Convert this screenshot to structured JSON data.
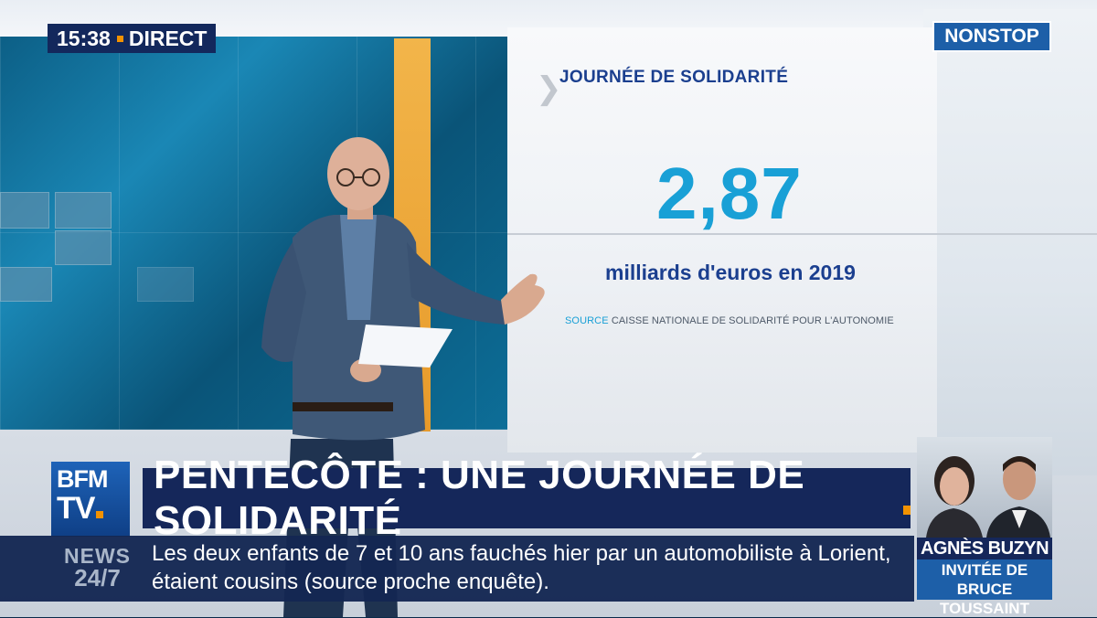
{
  "clock": {
    "time": "15:38",
    "live_label": "DIRECT"
  },
  "channel_badge": {
    "part1": "NON",
    "part2": "STOP"
  },
  "graphic": {
    "title": "JOURNÉE DE SOLIDARITÉ",
    "value": "2,87",
    "unit": "milliards d'euros en 2019",
    "source_label": "SOURCE",
    "source_text": "CAISSE NATIONALE DE SOLIDARITÉ POUR L'AUTONOMIE"
  },
  "logo": {
    "line1": "BFM",
    "line2": "TV"
  },
  "headline": "PENTECÔTE : UNE JOURNÉE DE SOLIDARITÉ",
  "ticker": {
    "label_top": "NEWS",
    "label_bottom": "24/7",
    "text": "Les deux enfants de 7 et 10 ans fauchés hier par un automobiliste à Lorient, étaient cousins (source proche enquête)."
  },
  "guest": {
    "name": "AGNÈS BUZYN",
    "line1": "INVITÉE DE",
    "line2": "BRUCE TOUSSAINT"
  },
  "colors": {
    "navy": "#15275a",
    "accent_orange": "#f39200",
    "cyan": "#19a0d6",
    "bfm_blue": "#1d5fa8"
  }
}
